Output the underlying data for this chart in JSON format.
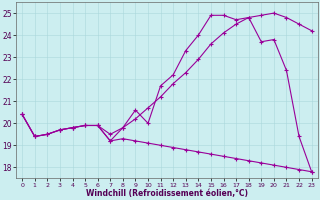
{
  "xlabel": "Windchill (Refroidissement éolien,°C)",
  "xlim": [
    -0.5,
    23.5
  ],
  "ylim": [
    17.5,
    25.5
  ],
  "yticks": [
    18,
    19,
    20,
    21,
    22,
    23,
    24,
    25
  ],
  "xticks": [
    0,
    1,
    2,
    3,
    4,
    5,
    6,
    7,
    8,
    9,
    10,
    11,
    12,
    13,
    14,
    15,
    16,
    17,
    18,
    19,
    20,
    21,
    22,
    23
  ],
  "bg_color": "#cceef0",
  "line_color": "#990099",
  "curve1_x": [
    0,
    1,
    2,
    3,
    4,
    5,
    6,
    7,
    8,
    9,
    10,
    11,
    12,
    13,
    14,
    15,
    16,
    17,
    18,
    19,
    20,
    21,
    22,
    23
  ],
  "curve1_y": [
    20.4,
    19.4,
    19.5,
    19.7,
    19.8,
    19.9,
    19.9,
    19.2,
    19.8,
    20.6,
    20.0,
    21.7,
    22.2,
    23.3,
    24.0,
    24.9,
    24.9,
    24.7,
    24.8,
    23.7,
    23.8,
    22.4,
    19.4,
    17.8
  ],
  "curve2_x": [
    0,
    1,
    2,
    3,
    4,
    5,
    6,
    7,
    8,
    9,
    10,
    11,
    12,
    13,
    14,
    15,
    16,
    17,
    18,
    19,
    20,
    21,
    22,
    23
  ],
  "curve2_y": [
    20.4,
    19.4,
    19.5,
    19.7,
    19.8,
    19.9,
    19.9,
    19.5,
    19.8,
    20.2,
    20.7,
    21.2,
    21.8,
    22.3,
    22.9,
    23.6,
    24.1,
    24.5,
    24.8,
    24.9,
    25.0,
    24.8,
    24.5,
    24.2
  ],
  "curve3_x": [
    0,
    1,
    2,
    3,
    4,
    5,
    6,
    7,
    8,
    9,
    10,
    11,
    12,
    13,
    14,
    15,
    16,
    17,
    18,
    19,
    20,
    21,
    22,
    23
  ],
  "curve3_y": [
    20.4,
    19.4,
    19.5,
    19.7,
    19.8,
    19.9,
    19.9,
    19.2,
    19.3,
    19.2,
    19.1,
    19.0,
    18.9,
    18.8,
    18.7,
    18.6,
    18.5,
    18.4,
    18.3,
    18.2,
    18.1,
    18.0,
    17.9,
    17.8
  ]
}
